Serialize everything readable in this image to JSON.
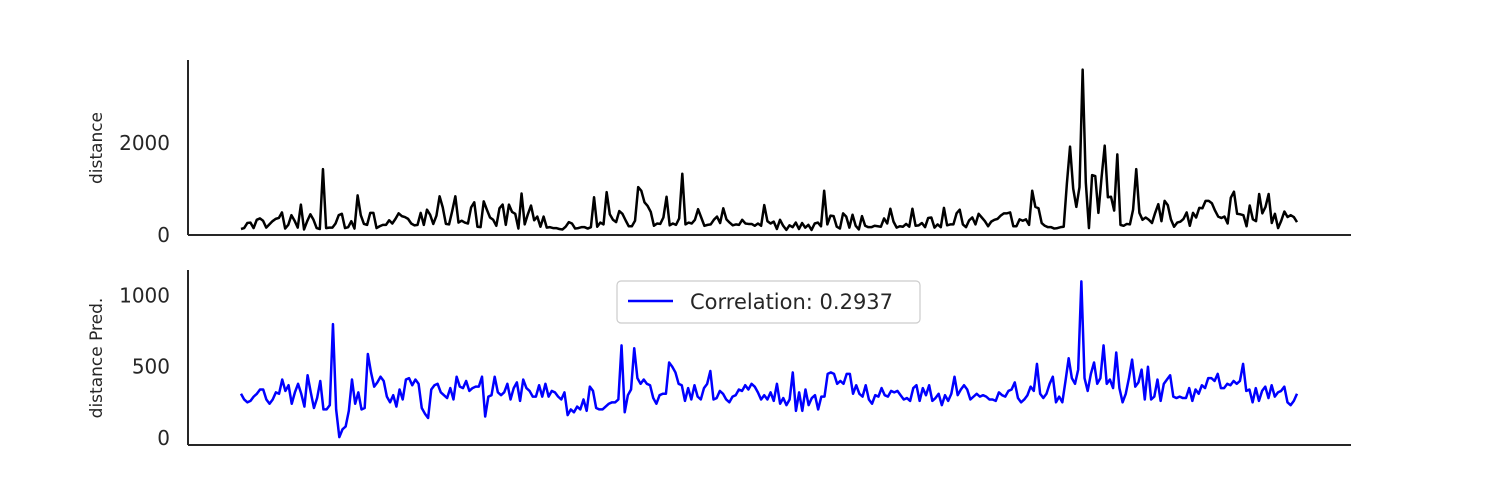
{
  "chart_data": [
    {
      "type": "line",
      "ylabel": "distance",
      "ylim": [
        0,
        3800
      ],
      "yticks": [
        0,
        2000
      ],
      "grid": false,
      "series": [
        {
          "color": "#000000",
          "values": [
            130,
            150,
            260,
            270,
            150,
            330,
            360,
            310,
            160,
            230,
            300,
            350,
            370,
            490,
            140,
            220,
            430,
            310,
            160,
            660,
            120,
            300,
            450,
            330,
            150,
            130,
            1430,
            150,
            160,
            160,
            250,
            430,
            460,
            150,
            170,
            300,
            140,
            860,
            430,
            240,
            220,
            480,
            480,
            150,
            190,
            220,
            220,
            320,
            250,
            350,
            470,
            410,
            390,
            350,
            250,
            210,
            220,
            480,
            220,
            550,
            440,
            240,
            420,
            840,
            600,
            240,
            230,
            520,
            840,
            270,
            310,
            270,
            250,
            600,
            710,
            180,
            170,
            730,
            550,
            380,
            330,
            200,
            580,
            660,
            220,
            660,
            500,
            460,
            140,
            900,
            230,
            450,
            640,
            320,
            400,
            180,
            400,
            160,
            170,
            150,
            150,
            130,
            120,
            180,
            280,
            250,
            140,
            150,
            170,
            170,
            140,
            170,
            820,
            180,
            270,
            230,
            930,
            450,
            330,
            280,
            520,
            460,
            320,
            190,
            190,
            310,
            1040,
            960,
            710,
            630,
            500,
            200,
            250,
            240,
            380,
            830,
            210,
            250,
            220,
            360,
            1330,
            230,
            270,
            250,
            330,
            560,
            380,
            200,
            220,
            230,
            330,
            400,
            260,
            580,
            340,
            270,
            210,
            230,
            220,
            330,
            250,
            240,
            240,
            200,
            250,
            200,
            650,
            300,
            250,
            290,
            130,
            330,
            200,
            110,
            210,
            170,
            270,
            130,
            260,
            160,
            220,
            110,
            250,
            270,
            190,
            960,
            230,
            420,
            410,
            180,
            140,
            470,
            400,
            160,
            440,
            200,
            120,
            410,
            200,
            170,
            170,
            200,
            190,
            180,
            360,
            250,
            570,
            290,
            160,
            190,
            180,
            240,
            180,
            570,
            200,
            210,
            260,
            170,
            370,
            380,
            160,
            230,
            170,
            590,
            210,
            230,
            230,
            470,
            550,
            230,
            170,
            320,
            380,
            230,
            460,
            380,
            300,
            190,
            290,
            330,
            350,
            420,
            470,
            470,
            490,
            190,
            190,
            340,
            310,
            340,
            220,
            960,
            610,
            580,
            260,
            200,
            170,
            170,
            140,
            150,
            170,
            180,
            1120,
            1920,
            1010,
            610,
            1040,
            3590,
            1140,
            150,
            1300,
            1280,
            480,
            1250,
            1940,
            820,
            830,
            530,
            1750,
            220,
            200,
            240,
            230,
            550,
            1430,
            480,
            330,
            380,
            330,
            260,
            480,
            670,
            300,
            740,
            650,
            340,
            180,
            270,
            290,
            350,
            490,
            200,
            480,
            380,
            590,
            580,
            740,
            740,
            690,
            530,
            400,
            370,
            400,
            250,
            810,
            940,
            460,
            450,
            430,
            190,
            640,
            340,
            300,
            890,
            470,
            610,
            890,
            260,
            460,
            150,
            310,
            510,
            390,
            430,
            390,
            280
          ]
        }
      ]
    },
    {
      "type": "line",
      "ylabel": "distance Pred.",
      "ylim": [
        -50,
        1180
      ],
      "yticks": [
        0,
        500,
        1000
      ],
      "grid": false,
      "legend_position": "top-center",
      "series": [
        {
          "name": "Correlation: 0.2937",
          "color": "#0000ff",
          "values": [
            310,
            270,
            250,
            260,
            290,
            310,
            340,
            340,
            270,
            240,
            270,
            320,
            310,
            410,
            330,
            370,
            240,
            320,
            380,
            310,
            220,
            440,
            320,
            210,
            280,
            400,
            200,
            200,
            230,
            800,
            200,
            5,
            60,
            80,
            190,
            410,
            240,
            320,
            200,
            210,
            590,
            460,
            360,
            390,
            430,
            400,
            290,
            250,
            300,
            220,
            340,
            270,
            410,
            420,
            370,
            410,
            380,
            210,
            170,
            140,
            340,
            370,
            380,
            320,
            300,
            280,
            350,
            270,
            430,
            360,
            350,
            400,
            330,
            350,
            360,
            360,
            430,
            150,
            290,
            300,
            430,
            320,
            300,
            320,
            380,
            270,
            350,
            390,
            260,
            410,
            350,
            330,
            290,
            290,
            370,
            290,
            380,
            290,
            330,
            320,
            290,
            270,
            320,
            160,
            200,
            180,
            220,
            200,
            270,
            190,
            360,
            330,
            210,
            200,
            200,
            220,
            240,
            250,
            250,
            270,
            650,
            180,
            300,
            340,
            630,
            420,
            380,
            410,
            380,
            370,
            280,
            240,
            300,
            310,
            310,
            530,
            500,
            460,
            380,
            370,
            260,
            350,
            270,
            370,
            290,
            270,
            350,
            380,
            470,
            270,
            280,
            330,
            310,
            270,
            250,
            290,
            300,
            340,
            330,
            370,
            340,
            380,
            360,
            320,
            270,
            300,
            270,
            320,
            260,
            380,
            240,
            280,
            230,
            270,
            460,
            190,
            320,
            190,
            340,
            230,
            280,
            300,
            200,
            290,
            290,
            450,
            460,
            450,
            380,
            400,
            380,
            450,
            450,
            310,
            370,
            310,
            290,
            370,
            270,
            240,
            300,
            290,
            350,
            300,
            290,
            330,
            320,
            330,
            300,
            270,
            280,
            260,
            350,
            370,
            260,
            350,
            300,
            370,
            260,
            280,
            310,
            230,
            300,
            260,
            310,
            430,
            300,
            340,
            370,
            340,
            270,
            290,
            310,
            290,
            300,
            290,
            270,
            270,
            260,
            320,
            300,
            290,
            330,
            340,
            390,
            280,
            250,
            270,
            300,
            360,
            330,
            520,
            310,
            280,
            310,
            380,
            430,
            250,
            290,
            250,
            400,
            560,
            420,
            380,
            480,
            1100,
            420,
            330,
            450,
            530,
            380,
            420,
            650,
            380,
            410,
            350,
            600,
            350,
            250,
            310,
            420,
            550,
            360,
            390,
            480,
            270,
            500,
            270,
            290,
            410,
            260,
            380,
            410,
            440,
            290,
            280,
            290,
            280,
            280,
            350,
            260,
            340,
            310,
            370,
            350,
            420,
            420,
            400,
            450,
            350,
            350,
            380,
            370,
            400,
            380,
            400,
            520,
            330,
            340,
            250,
            350,
            260,
            330,
            360,
            280,
            370,
            290,
            320,
            330,
            360,
            250,
            230,
            260,
            310
          ]
        }
      ]
    }
  ]
}
